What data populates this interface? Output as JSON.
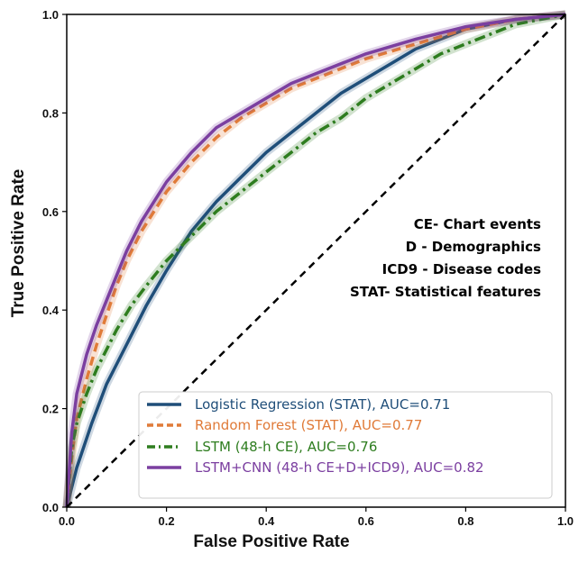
{
  "chart_data": {
    "type": "line",
    "xlabel": "False Positive Rate",
    "ylabel": "True Positive Rate",
    "xlim": [
      0.0,
      1.0
    ],
    "ylim": [
      0.0,
      1.0
    ],
    "xticks": [
      "0.0",
      "0.2",
      "0.4",
      "0.6",
      "0.8",
      "1.0"
    ],
    "yticks": [
      "0.0",
      "0.2",
      "0.4",
      "0.6",
      "0.8",
      "1.0"
    ],
    "grid": false,
    "legend_position": "lower-right",
    "annotations": [
      "CE- Chart events",
      "D - Demographics",
      "ICD9 - Disease codes",
      "STAT- Statistical features"
    ],
    "series": [
      {
        "name": "Logistic Regression (STAT), AUC=0.71",
        "color": "#1f4e79",
        "style": "solid",
        "x": [
          0,
          0.02,
          0.05,
          0.08,
          0.12,
          0.16,
          0.2,
          0.25,
          0.3,
          0.35,
          0.4,
          0.45,
          0.5,
          0.55,
          0.6,
          0.65,
          0.7,
          0.75,
          0.8,
          0.85,
          0.9,
          0.95,
          1.0
        ],
        "y": [
          0,
          0.08,
          0.17,
          0.25,
          0.33,
          0.41,
          0.48,
          0.56,
          0.62,
          0.67,
          0.72,
          0.76,
          0.8,
          0.84,
          0.87,
          0.9,
          0.93,
          0.95,
          0.97,
          0.98,
          0.99,
          0.995,
          1.0
        ]
      },
      {
        "name": "Random Forest (STAT), AUC=0.77",
        "color": "#e07b39",
        "style": "dashed",
        "x": [
          0,
          0.01,
          0.02,
          0.04,
          0.06,
          0.08,
          0.1,
          0.12,
          0.15,
          0.2,
          0.25,
          0.3,
          0.35,
          0.4,
          0.45,
          0.5,
          0.6,
          0.7,
          0.8,
          0.9,
          1.0
        ],
        "y": [
          0,
          0.1,
          0.18,
          0.26,
          0.33,
          0.39,
          0.45,
          0.5,
          0.56,
          0.64,
          0.7,
          0.75,
          0.79,
          0.82,
          0.85,
          0.87,
          0.91,
          0.94,
          0.97,
          0.99,
          1.0
        ]
      },
      {
        "name": "LSTM (48-h CE), AUC=0.76",
        "color": "#2e7d1f",
        "style": "dashdot",
        "x": [
          0,
          0.01,
          0.02,
          0.04,
          0.06,
          0.08,
          0.1,
          0.13,
          0.16,
          0.2,
          0.25,
          0.3,
          0.35,
          0.4,
          0.45,
          0.5,
          0.55,
          0.6,
          0.65,
          0.7,
          0.75,
          0.8,
          0.85,
          0.9,
          0.95,
          1.0
        ],
        "y": [
          0,
          0.12,
          0.17,
          0.23,
          0.28,
          0.32,
          0.36,
          0.41,
          0.45,
          0.5,
          0.55,
          0.6,
          0.64,
          0.68,
          0.72,
          0.76,
          0.79,
          0.83,
          0.86,
          0.89,
          0.92,
          0.94,
          0.96,
          0.98,
          0.99,
          1.0
        ]
      },
      {
        "name": "LSTM+CNN (48-h CE+D+ICD9), AUC=0.82",
        "color": "#7b3fa0",
        "style": "solid",
        "x": [
          0,
          0.01,
          0.02,
          0.04,
          0.06,
          0.08,
          0.1,
          0.12,
          0.15,
          0.2,
          0.25,
          0.3,
          0.35,
          0.4,
          0.45,
          0.5,
          0.6,
          0.7,
          0.8,
          0.9,
          1.0
        ],
        "y": [
          0,
          0.15,
          0.23,
          0.31,
          0.37,
          0.42,
          0.47,
          0.52,
          0.58,
          0.66,
          0.72,
          0.77,
          0.8,
          0.83,
          0.86,
          0.88,
          0.92,
          0.95,
          0.975,
          0.99,
          1.0
        ]
      }
    ],
    "diagonal": {
      "style": "dashed",
      "color": "#000000"
    }
  }
}
